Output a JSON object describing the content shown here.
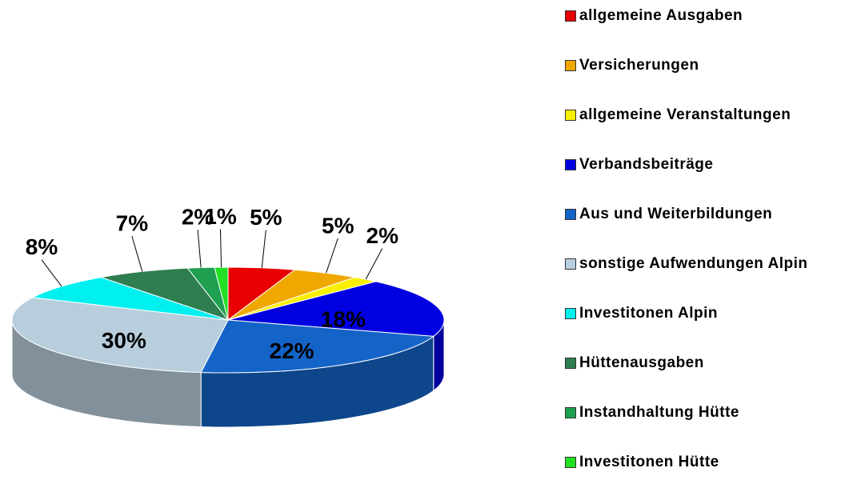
{
  "chart_data": {
    "type": "pie3d",
    "categories": [
      "allgemeine Ausgaben",
      "Versicherungen",
      "allgemeine Veranstaltungen",
      "Verbandsbeiträge",
      "Aus und Weiterbildungen",
      "sonstige Aufwendungen Alpin",
      "Investitonen Alpin",
      "Hüttenausgaben",
      "Instandhaltung Hütte",
      "Investitonen Hütte"
    ],
    "values": [
      5,
      5,
      2,
      18,
      22,
      30,
      8,
      7,
      2,
      1
    ],
    "value_labels": [
      "5%",
      "5%",
      "2%",
      "18%",
      "22%",
      "30%",
      "8%",
      "7%",
      "2%",
      "1%"
    ],
    "colors": [
      "#e80000",
      "#f0a800",
      "#f8f000",
      "#0000e0",
      "#1464c8",
      "#b8cedc",
      "#00f0f0",
      "#2e7e50",
      "#1ea050",
      "#22e022"
    ],
    "legend": "right"
  }
}
